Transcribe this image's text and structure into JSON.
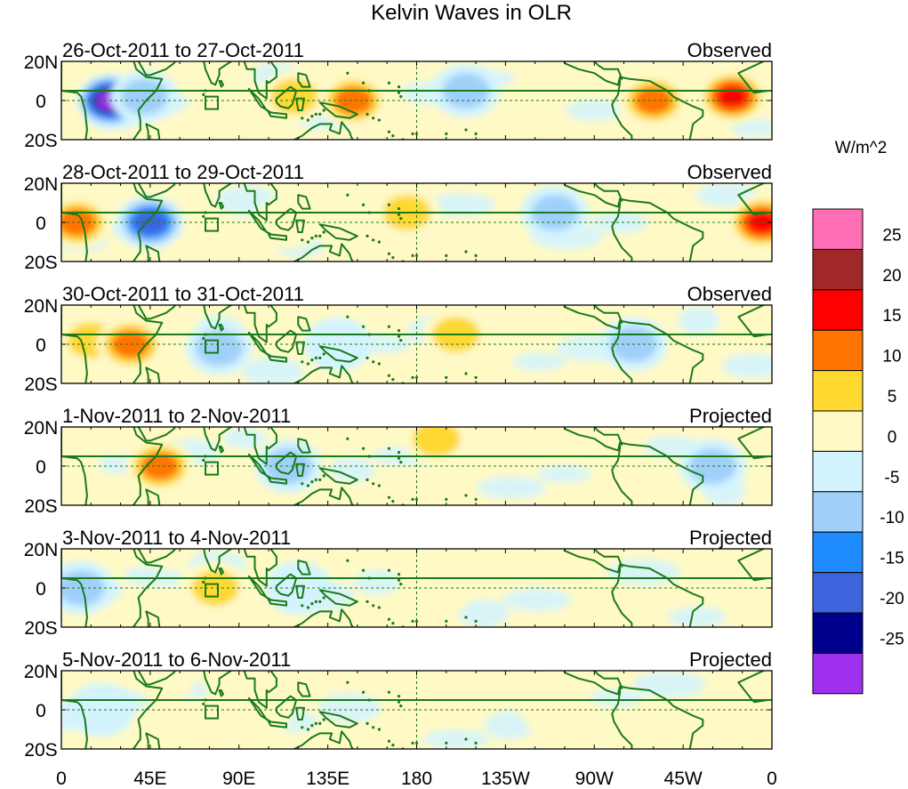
{
  "chart_data": {
    "type": "heatmap",
    "title": "Kelvin Waves in OLR",
    "units": "W/m^2",
    "xlabel": "",
    "ylabel": "",
    "x_tick_labels": [
      "0",
      "45E",
      "90E",
      "135E",
      "180",
      "135W",
      "90W",
      "45W",
      "0"
    ],
    "x_tick_lon": [
      0,
      45,
      90,
      135,
      180,
      225,
      270,
      315,
      360
    ],
    "y_tick_labels": [
      "20N",
      "0",
      "20S"
    ],
    "y_tick_lat": [
      20,
      0,
      -20
    ],
    "colorbar_levels": [
      "25",
      "20",
      "15",
      "10",
      "5",
      "0",
      "-5",
      "-10",
      "-15",
      "-20",
      "-25"
    ],
    "colorbar_colors": [
      "#ff6eb4",
      "#a02828",
      "#ff0000",
      "#ff7400",
      "#ffd830",
      "#fff9c6",
      "#d3f4ff",
      "#a0d0fa",
      "#1e8cff",
      "#3c64dc",
      "#00008c",
      "#a030f0"
    ],
    "map_line_color": "#1a7a1a",
    "panels": [
      {
        "date_range": "26-Oct-2011 to 27-Oct-2011",
        "label": "Observed",
        "anomalies": [
          {
            "lon": 25,
            "lat": 0,
            "value": -30
          },
          {
            "lon": 42,
            "lat": 2,
            "value": -8
          },
          {
            "lon": 118,
            "lat": 2,
            "value": 10
          },
          {
            "lon": 148,
            "lat": 0,
            "value": 12
          },
          {
            "lon": 205,
            "lat": 5,
            "value": -6
          },
          {
            "lon": 300,
            "lat": 0,
            "value": 12
          },
          {
            "lon": 340,
            "lat": 2,
            "value": 20
          }
        ]
      },
      {
        "date_range": "28-Oct-2011 to 29-Oct-2011",
        "label": "Observed",
        "anomalies": [
          {
            "lon": 8,
            "lat": 0,
            "value": 12
          },
          {
            "lon": 45,
            "lat": 0,
            "value": -20
          },
          {
            "lon": 115,
            "lat": 0,
            "value": 5
          },
          {
            "lon": 175,
            "lat": 5,
            "value": 10
          },
          {
            "lon": 250,
            "lat": 5,
            "value": -8
          },
          {
            "lon": 355,
            "lat": 0,
            "value": 18
          }
        ]
      },
      {
        "date_range": "30-Oct-2011 to 31-Oct-2011",
        "label": "Observed",
        "anomalies": [
          {
            "lon": 15,
            "lat": 2,
            "value": 10
          },
          {
            "lon": 35,
            "lat": 0,
            "value": 12
          },
          {
            "lon": 80,
            "lat": -2,
            "value": -8
          },
          {
            "lon": 140,
            "lat": 0,
            "value": -5
          },
          {
            "lon": 200,
            "lat": 5,
            "value": 6
          },
          {
            "lon": 290,
            "lat": 0,
            "value": -10
          }
        ]
      },
      {
        "date_range": "1-Nov-2011 to 2-Nov-2011",
        "label": "Projected",
        "anomalies": [
          {
            "lon": 50,
            "lat": 0,
            "value": 12
          },
          {
            "lon": 115,
            "lat": 0,
            "value": -10
          },
          {
            "lon": 190,
            "lat": 14,
            "value": 6
          },
          {
            "lon": 330,
            "lat": 0,
            "value": -6
          }
        ]
      },
      {
        "date_range": "3-Nov-2011 to 4-Nov-2011",
        "label": "Projected",
        "anomalies": [
          {
            "lon": 10,
            "lat": 0,
            "value": -6
          },
          {
            "lon": 78,
            "lat": 0,
            "value": 6
          },
          {
            "lon": 120,
            "lat": 0,
            "value": -5
          },
          {
            "lon": 190,
            "lat": 0,
            "value": 2
          }
        ]
      },
      {
        "date_range": "5-Nov-2011 to 6-Nov-2011",
        "label": "Projected",
        "anomalies": [
          {
            "lon": 20,
            "lat": 0,
            "value": -5
          },
          {
            "lon": 100,
            "lat": 0,
            "value": 2
          },
          {
            "lon": 250,
            "lat": 0,
            "value": 2
          }
        ]
      }
    ]
  }
}
